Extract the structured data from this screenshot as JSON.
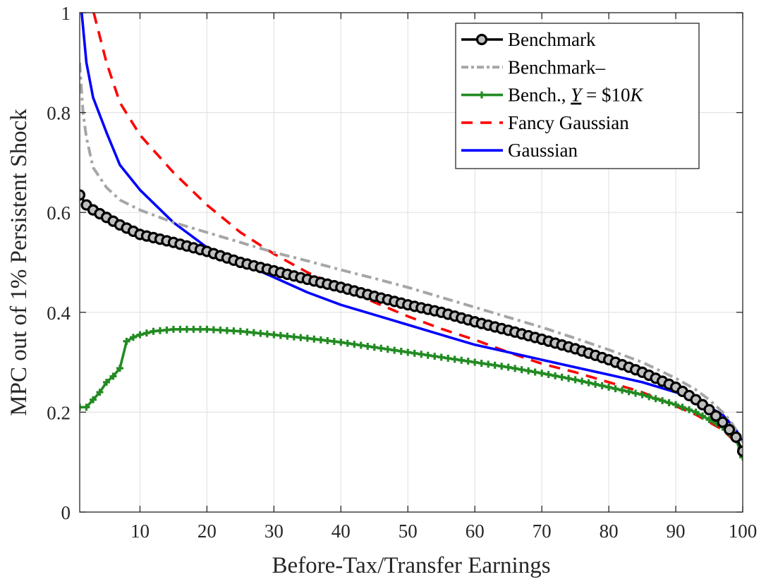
{
  "chart_data": {
    "type": "line",
    "xlabel": "Before-Tax/Transfer Earnings",
    "ylabel": "MPC out of 1% Persistent Shock",
    "xlim": [
      1,
      100
    ],
    "ylim": [
      0,
      1
    ],
    "xticks": [
      10,
      20,
      30,
      40,
      50,
      60,
      70,
      80,
      90,
      100
    ],
    "yticks": [
      0,
      0.2,
      0.4,
      0.6,
      0.8,
      1
    ],
    "ytick_labels": [
      "0",
      "0.2",
      "0.4",
      "0.6",
      "0.8",
      "1"
    ],
    "grid": true,
    "legend_position": "top-right",
    "series": [
      {
        "name": "Benchmark",
        "color": "#000000",
        "style": "solid-circle-markers",
        "points": [
          [
            1,
            0.635
          ],
          [
            2,
            0.615
          ],
          [
            3,
            0.605
          ],
          [
            5,
            0.59
          ],
          [
            7,
            0.575
          ],
          [
            10,
            0.556
          ],
          [
            15,
            0.54
          ],
          [
            20,
            0.522
          ],
          [
            25,
            0.5
          ],
          [
            30,
            0.483
          ],
          [
            35,
            0.466
          ],
          [
            40,
            0.45
          ],
          [
            45,
            0.432
          ],
          [
            50,
            0.415
          ],
          [
            55,
            0.4
          ],
          [
            60,
            0.381
          ],
          [
            65,
            0.364
          ],
          [
            70,
            0.346
          ],
          [
            75,
            0.327
          ],
          [
            80,
            0.305
          ],
          [
            85,
            0.28
          ],
          [
            90,
            0.25
          ],
          [
            93,
            0.225
          ],
          [
            95,
            0.205
          ],
          [
            97,
            0.18
          ],
          [
            98,
            0.165
          ],
          [
            99,
            0.15
          ],
          [
            100,
            0.122
          ]
        ]
      },
      {
        "name": "Benchmark–",
        "color": "#a6a6a6",
        "style": "dash-dot",
        "points": [
          [
            1,
            0.9
          ],
          [
            1.5,
            0.8
          ],
          [
            2,
            0.75
          ],
          [
            3,
            0.69
          ],
          [
            5,
            0.65
          ],
          [
            7,
            0.625
          ],
          [
            10,
            0.605
          ],
          [
            15,
            0.58
          ],
          [
            20,
            0.56
          ],
          [
            25,
            0.54
          ],
          [
            30,
            0.52
          ],
          [
            35,
            0.503
          ],
          [
            40,
            0.485
          ],
          [
            45,
            0.468
          ],
          [
            50,
            0.45
          ],
          [
            55,
            0.43
          ],
          [
            60,
            0.41
          ],
          [
            65,
            0.39
          ],
          [
            70,
            0.37
          ],
          [
            75,
            0.348
          ],
          [
            80,
            0.325
          ],
          [
            85,
            0.3
          ],
          [
            90,
            0.268
          ],
          [
            93,
            0.245
          ],
          [
            95,
            0.225
          ],
          [
            97,
            0.2
          ],
          [
            98,
            0.185
          ],
          [
            99,
            0.165
          ],
          [
            100,
            0.14
          ]
        ]
      },
      {
        "name": "Bench., Y = $10K",
        "color": "#228b22",
        "style": "solid-plus-markers",
        "points": [
          [
            1,
            0.21
          ],
          [
            2,
            0.21
          ],
          [
            3,
            0.225
          ],
          [
            4,
            0.24
          ],
          [
            5,
            0.26
          ],
          [
            6,
            0.272
          ],
          [
            7,
            0.288
          ],
          [
            8,
            0.342
          ],
          [
            9,
            0.35
          ],
          [
            10,
            0.355
          ],
          [
            12,
            0.362
          ],
          [
            15,
            0.366
          ],
          [
            20,
            0.366
          ],
          [
            25,
            0.362
          ],
          [
            30,
            0.355
          ],
          [
            35,
            0.348
          ],
          [
            40,
            0.34
          ],
          [
            45,
            0.33
          ],
          [
            50,
            0.32
          ],
          [
            55,
            0.31
          ],
          [
            60,
            0.3
          ],
          [
            65,
            0.29
          ],
          [
            70,
            0.278
          ],
          [
            75,
            0.265
          ],
          [
            80,
            0.25
          ],
          [
            85,
            0.235
          ],
          [
            90,
            0.215
          ],
          [
            93,
            0.2
          ],
          [
            95,
            0.185
          ],
          [
            97,
            0.17
          ],
          [
            98,
            0.158
          ],
          [
            99,
            0.145
          ],
          [
            100,
            0.11
          ]
        ]
      },
      {
        "name": "Fancy Gaussian",
        "color": "#ff0000",
        "style": "dashed",
        "points": [
          [
            3.1,
            1.0
          ],
          [
            5,
            0.9
          ],
          [
            7,
            0.82
          ],
          [
            10,
            0.755
          ],
          [
            15,
            0.68
          ],
          [
            20,
            0.615
          ],
          [
            25,
            0.56
          ],
          [
            30,
            0.517
          ],
          [
            35,
            0.48
          ],
          [
            40,
            0.45
          ],
          [
            45,
            0.42
          ],
          [
            50,
            0.392
          ],
          [
            55,
            0.367
          ],
          [
            60,
            0.345
          ],
          [
            65,
            0.32
          ],
          [
            70,
            0.297
          ],
          [
            75,
            0.28
          ],
          [
            80,
            0.26
          ],
          [
            85,
            0.24
          ],
          [
            90,
            0.212
          ],
          [
            93,
            0.195
          ],
          [
            95,
            0.18
          ],
          [
            97,
            0.165
          ],
          [
            98,
            0.152
          ],
          [
            99,
            0.14
          ],
          [
            100,
            0.11
          ]
        ]
      },
      {
        "name": "Gaussian",
        "color": "#0000ff",
        "style": "solid",
        "points": [
          [
            1.3,
            1.0
          ],
          [
            2,
            0.9
          ],
          [
            3,
            0.83
          ],
          [
            5,
            0.76
          ],
          [
            7,
            0.695
          ],
          [
            10,
            0.645
          ],
          [
            15,
            0.58
          ],
          [
            20,
            0.53
          ],
          [
            25,
            0.5
          ],
          [
            30,
            0.47
          ],
          [
            35,
            0.44
          ],
          [
            40,
            0.415
          ],
          [
            45,
            0.395
          ],
          [
            50,
            0.375
          ],
          [
            55,
            0.355
          ],
          [
            60,
            0.335
          ],
          [
            65,
            0.32
          ],
          [
            70,
            0.305
          ],
          [
            75,
            0.29
          ],
          [
            80,
            0.275
          ],
          [
            85,
            0.26
          ],
          [
            90,
            0.24
          ],
          [
            93,
            0.225
          ],
          [
            95,
            0.21
          ],
          [
            97,
            0.195
          ],
          [
            98,
            0.18
          ],
          [
            99,
            0.165
          ],
          [
            100,
            0.14
          ]
        ]
      }
    ]
  }
}
